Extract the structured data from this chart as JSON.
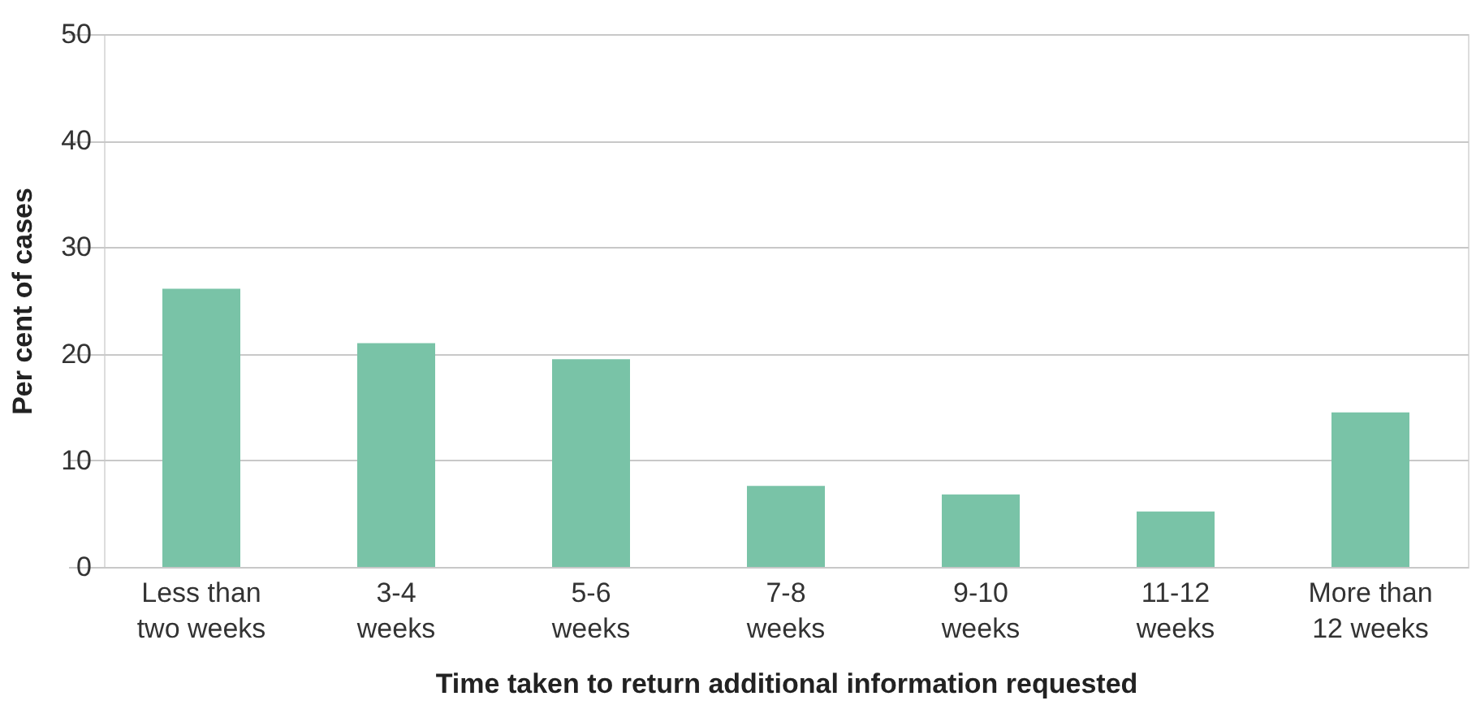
{
  "chart_data": {
    "type": "bar",
    "xlabel": "Time taken to return additional information requested",
    "ylabel": "Per cent of cases",
    "categories": [
      "Less than two weeks",
      "3-4 weeks",
      "5-6 weeks",
      "7-8 weeks",
      "9-10 weeks",
      "11-12 weeks",
      "More than 12 weeks"
    ],
    "values": [
      26.1,
      21.0,
      19.5,
      7.6,
      6.8,
      5.2,
      14.5
    ],
    "color": "#79c3a7",
    "ylim": [
      0,
      50
    ],
    "yticks": [
      0,
      10,
      20,
      30,
      40,
      50
    ],
    "grid": "y"
  }
}
